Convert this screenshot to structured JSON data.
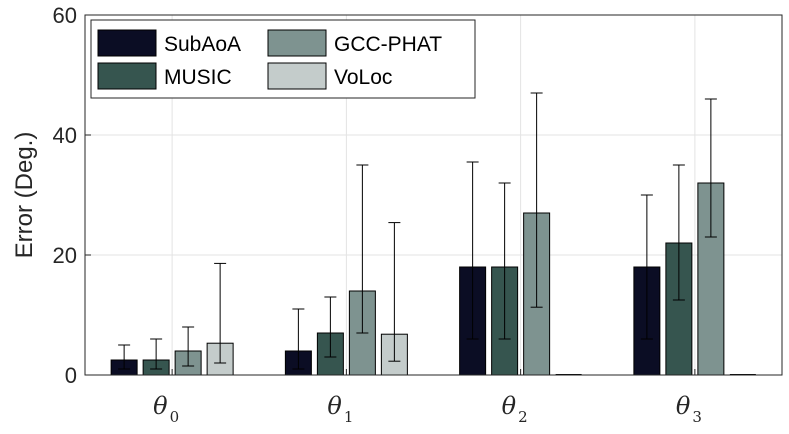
{
  "chart_data": {
    "type": "bar",
    "title": "",
    "xlabel": "",
    "ylabel": "Error (Deg.)",
    "ylim": [
      0,
      60
    ],
    "yticks": [
      0,
      20,
      40,
      60
    ],
    "grid": true,
    "legend_position": "top-left",
    "categories": [
      {
        "symbol": "θ",
        "sub": "0"
      },
      {
        "symbol": "θ",
        "sub": "1"
      },
      {
        "symbol": "θ",
        "sub": "2"
      },
      {
        "symbol": "θ",
        "sub": "3"
      }
    ],
    "series": [
      {
        "name": "SubAoA",
        "color": "#0b0d24",
        "values": [
          2.5,
          4,
          18,
          18
        ],
        "err_low": [
          1,
          1,
          6,
          6
        ],
        "err_high": [
          5,
          11,
          35.5,
          30
        ]
      },
      {
        "name": "MUSIC",
        "color": "#36554f",
        "values": [
          2.5,
          7,
          18,
          22
        ],
        "err_low": [
          1,
          3,
          6,
          12.5
        ],
        "err_high": [
          6,
          13,
          32,
          35
        ]
      },
      {
        "name": "GCC-PHAT",
        "color": "#7e9390",
        "values": [
          4,
          14,
          27,
          32
        ],
        "err_low": [
          1.5,
          7,
          11.3,
          23
        ],
        "err_high": [
          8,
          35,
          47,
          46
        ]
      },
      {
        "name": "VoLoc",
        "color": "#c4cccb",
        "values": [
          5.3,
          6.8,
          0,
          0
        ],
        "err_low": [
          2,
          2.3,
          null,
          null
        ],
        "err_high": [
          18.6,
          25.4,
          null,
          null
        ]
      }
    ]
  }
}
